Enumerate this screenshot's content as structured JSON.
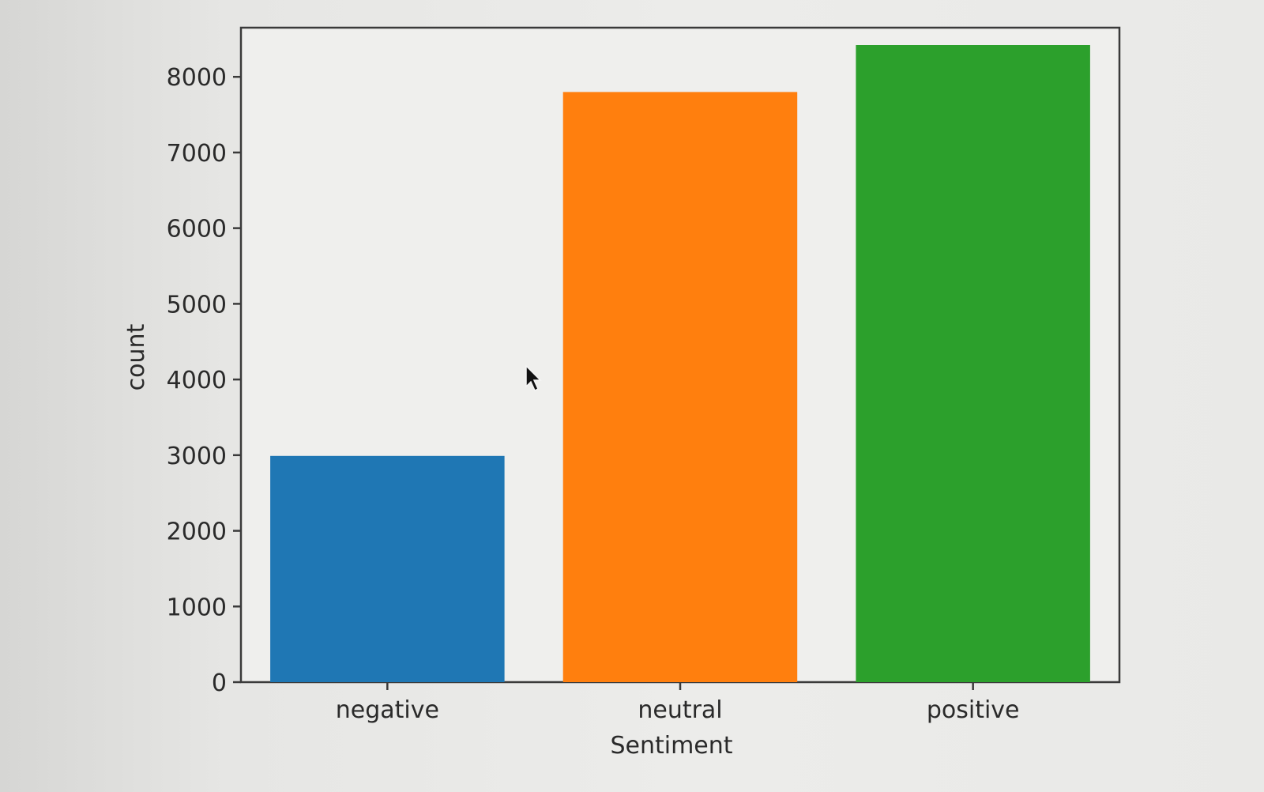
{
  "chart_data": {
    "type": "bar",
    "categories": [
      "negative",
      "neutral",
      "positive"
    ],
    "values": [
      2990,
      7800,
      8420
    ],
    "colors": [
      "#1f77b4",
      "#ff7f0e",
      "#2ca02c"
    ],
    "title": "",
    "xlabel": "Sentiment",
    "ylabel": "count",
    "ylim": [
      0,
      8650
    ],
    "yticks": [
      0,
      1000,
      2000,
      3000,
      4000,
      5000,
      6000,
      7000,
      8000
    ],
    "ytick_labels": [
      "0",
      "1000",
      "2000",
      "3000",
      "4000",
      "5000",
      "6000",
      "7000",
      "8000"
    ],
    "grid": false,
    "legend": "none"
  }
}
